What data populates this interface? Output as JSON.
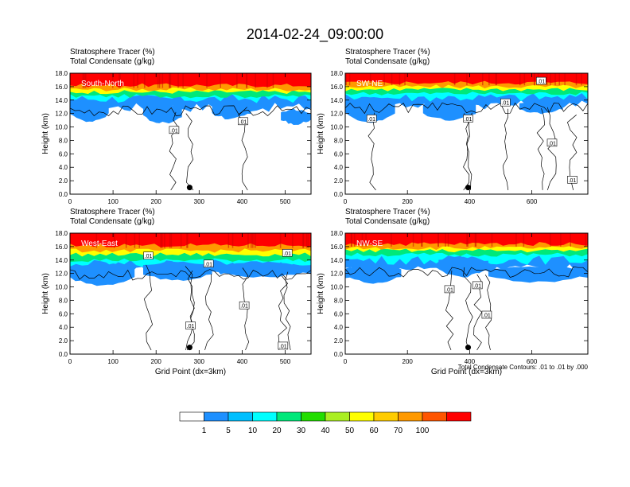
{
  "figure": {
    "title": "2014-02-24_09:00:00",
    "contour_note": "Total Condensate Contours: .01 to .01 by .000"
  },
  "colorbar": {
    "colors": [
      "#ffffff",
      "#1e90ff",
      "#00bfff",
      "#00ffff",
      "#00e87a",
      "#22dd00",
      "#aaee22",
      "#ffff00",
      "#ffcc00",
      "#ff9900",
      "#ff5500",
      "#ff0000"
    ],
    "labels": [
      "1",
      "5",
      "10",
      "20",
      "30",
      "40",
      "50",
      "60",
      "70",
      "100"
    ]
  },
  "chart_data": [
    {
      "type": "heatmap",
      "panel": "South-North",
      "header_line1": "Stratosphere Tracer   (%)",
      "header_line2": "Total Condensate   (g/kg)",
      "ylabel": "Height (km)",
      "xlabel": "",
      "xlim": [
        0,
        560
      ],
      "ylim": [
        0,
        18
      ],
      "xticks": [
        "0",
        "100",
        "200",
        "300",
        "400",
        "500"
      ],
      "xtick_values": [
        0,
        100,
        200,
        300,
        400,
        500
      ],
      "yticks": [
        "0.0",
        "2.0",
        "4.0",
        "6.0",
        "8.0",
        "10.0",
        "12.0",
        "14.0",
        "16.0",
        "18.0"
      ],
      "tracer_layers_km": {
        "red_base": 16.2,
        "orange_base": 15.6,
        "yellow_base": 15.2,
        "green_base": 14.6,
        "cyan_base": 14.2,
        "blue_base": 13.2
      },
      "deep_blue_patches": [
        [
          0,
          90,
          10.8,
          14.0
        ],
        [
          170,
          260,
          10.6,
          13.4
        ],
        [
          330,
          420,
          11.2,
          13.6
        ],
        [
          490,
          560,
          10.4,
          12.6
        ]
      ],
      "contour_labels": [
        {
          "text": ".01",
          "x": 242,
          "y": 9.5
        },
        {
          "text": ".01",
          "x": 402,
          "y": 10.8
        }
      ],
      "marker": {
        "x": 278,
        "y": 1.0
      }
    },
    {
      "type": "heatmap",
      "panel": "SW-NE",
      "header_line1": "Stratosphere Tracer   (%)",
      "header_line2": "Total Condensate   (g/kg)",
      "ylabel": "Height (km)",
      "xlabel": "",
      "xlim": [
        0,
        780
      ],
      "ylim": [
        0,
        18
      ],
      "xticks": [
        "0",
        "200",
        "400",
        "600"
      ],
      "xtick_values": [
        0,
        200,
        400,
        600
      ],
      "yticks": [
        "0.0",
        "2.0",
        "4.0",
        "6.0",
        "8.0",
        "10.0",
        "12.0",
        "14.0",
        "16.0",
        "18.0"
      ],
      "tracer_layers_km": {
        "red_base": 16.6,
        "orange_base": 16.0,
        "yellow_base": 15.6,
        "green_base": 15.0,
        "cyan_base": 14.4,
        "blue_base": 13.6
      },
      "deep_blue_patches": [
        [
          0,
          160,
          10.8,
          14.4
        ],
        [
          250,
          420,
          11.0,
          14.0
        ],
        [
          560,
          700,
          12.0,
          14.0
        ]
      ],
      "contour_labels": [
        {
          "text": ".01",
          "x": 85,
          "y": 11.2
        },
        {
          "text": ".01",
          "x": 395,
          "y": 11.2
        },
        {
          "text": ".01",
          "x": 515,
          "y": 13.6
        },
        {
          "text": ".01",
          "x": 630,
          "y": 16.8
        },
        {
          "text": ".01",
          "x": 665,
          "y": 7.6
        },
        {
          "text": ".01",
          "x": 730,
          "y": 2.1
        }
      ],
      "marker": {
        "x": 395,
        "y": 1.0
      }
    },
    {
      "type": "heatmap",
      "panel": "West-East",
      "header_line1": "Stratosphere Tracer   (%)",
      "header_line2": "Total Condensate   (g/kg)",
      "ylabel": "Height (km)",
      "xlabel": "Grid Point (dx=3km)",
      "xlim": [
        0,
        560
      ],
      "ylim": [
        0,
        18
      ],
      "xticks": [
        "0",
        "100",
        "200",
        "300",
        "400",
        "500"
      ],
      "xtick_values": [
        0,
        100,
        200,
        300,
        400,
        500
      ],
      "yticks": [
        "0.0",
        "2.0",
        "4.0",
        "6.0",
        "8.0",
        "10.0",
        "12.0",
        "14.0",
        "16.0",
        "18.0"
      ],
      "tracer_layers_km": {
        "red_base": 16.2,
        "orange_base": 15.4,
        "yellow_base": 14.8,
        "green_base": 14.0,
        "cyan_base": 13.4,
        "blue_base": 12.6
      },
      "deep_blue_patches": [
        [
          0,
          150,
          10.2,
          13.4
        ],
        [
          170,
          330,
          11.0,
          13.8
        ],
        [
          330,
          560,
          11.4,
          13.6
        ]
      ],
      "contour_labels": [
        {
          "text": ".01",
          "x": 182,
          "y": 14.6
        },
        {
          "text": ".01",
          "x": 322,
          "y": 13.4
        },
        {
          "text": ".01",
          "x": 505,
          "y": 15.0
        },
        {
          "text": ".01",
          "x": 405,
          "y": 7.2
        },
        {
          "text": ".01",
          "x": 280,
          "y": 4.2
        },
        {
          "text": ".01",
          "x": 495,
          "y": 1.2
        }
      ],
      "marker": {
        "x": 278,
        "y": 1.0
      }
    },
    {
      "type": "heatmap",
      "panel": "NW-SE",
      "header_line1": "Stratosphere Tracer   (%)",
      "header_line2": "Total Condensate   (g/kg)",
      "ylabel": "Height (km)",
      "xlabel": "Grid Point (dx=3km)",
      "xlim": [
        0,
        780
      ],
      "ylim": [
        0,
        18
      ],
      "xticks": [
        "0",
        "200",
        "400",
        "600"
      ],
      "xtick_values": [
        0,
        200,
        400,
        600
      ],
      "yticks": [
        "0.0",
        "2.0",
        "4.0",
        "6.0",
        "8.0",
        "10.0",
        "12.0",
        "14.0",
        "16.0",
        "18.0"
      ],
      "tracer_layers_km": {
        "red_base": 16.4,
        "orange_base": 15.8,
        "yellow_base": 15.4,
        "green_base": 14.8,
        "cyan_base": 14.0,
        "blue_base": 13.0
      },
      "deep_blue_patches": [
        [
          0,
          180,
          10.6,
          13.2
        ],
        [
          300,
          460,
          11.6,
          14.4
        ],
        [
          460,
          780,
          10.8,
          13.0
        ]
      ],
      "contour_labels": [
        {
          "text": ".01",
          "x": 335,
          "y": 9.6
        },
        {
          "text": ".01",
          "x": 425,
          "y": 10.2
        },
        {
          "text": ".01",
          "x": 455,
          "y": 5.8
        }
      ],
      "marker": {
        "x": 395,
        "y": 1.0
      }
    }
  ]
}
